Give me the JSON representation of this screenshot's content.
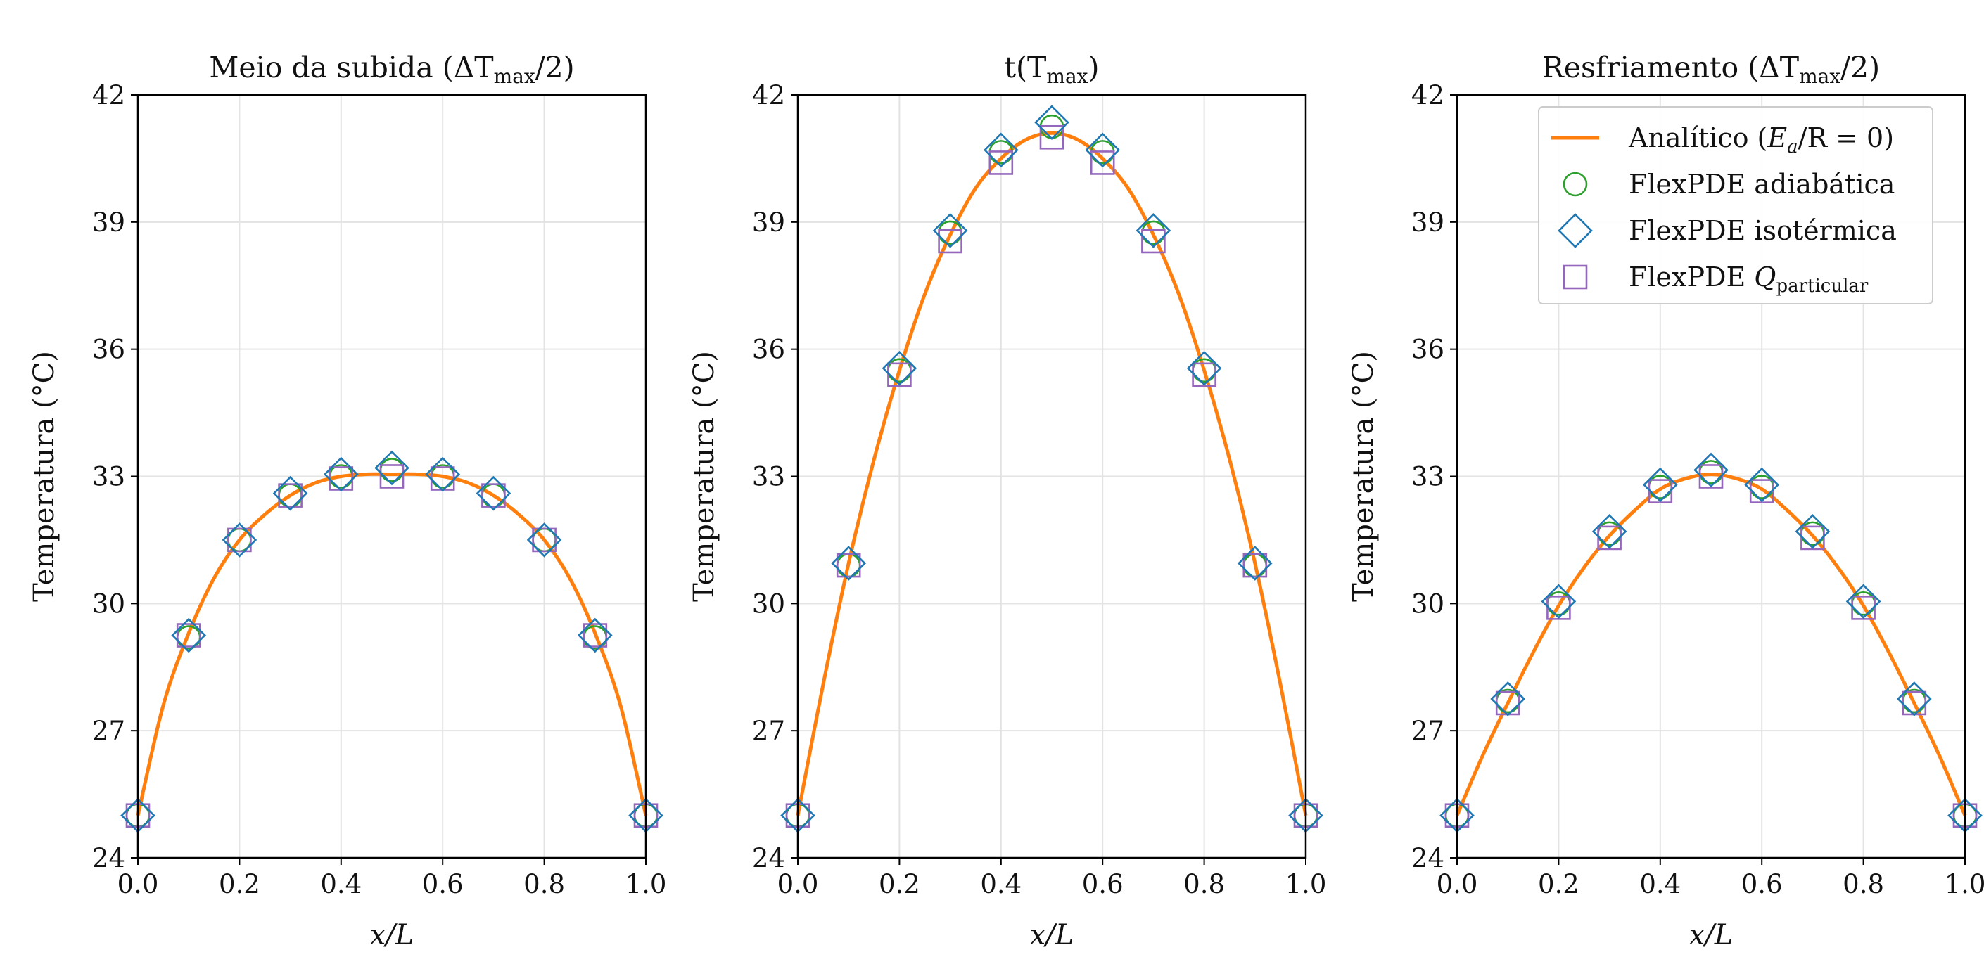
{
  "chart_data": [
    {
      "type": "line",
      "title": {
        "main": "Meio da subida (ΔT",
        "sub": "max",
        "tail": "/2)"
      },
      "xlabel": "x/L",
      "ylabel": "Temperatura (°C)",
      "xlim": [
        0.0,
        1.0
      ],
      "ylim": [
        24,
        42
      ],
      "xticks": [
        "0.0",
        "0.2",
        "0.4",
        "0.6",
        "0.8",
        "1.0"
      ],
      "yticks": [
        "24",
        "27",
        "30",
        "33",
        "36",
        "39",
        "42"
      ],
      "grid": true,
      "legend": null,
      "series": [
        {
          "name": "Analítico (Ea/R = 0)",
          "marker": "line",
          "color": "#ff7f0e",
          "x": [
            0.0,
            0.05,
            0.1,
            0.15,
            0.2,
            0.25,
            0.3,
            0.35,
            0.4,
            0.45,
            0.5,
            0.55,
            0.6,
            0.65,
            0.7,
            0.75,
            0.8,
            0.85,
            0.9,
            0.95,
            1.0
          ],
          "y": [
            25.0,
            27.6,
            29.3,
            30.6,
            31.5,
            32.1,
            32.55,
            32.85,
            33.0,
            33.05,
            33.05,
            33.05,
            33.0,
            32.85,
            32.55,
            32.1,
            31.5,
            30.6,
            29.3,
            27.6,
            25.0
          ]
        },
        {
          "name": "FlexPDE adiabática",
          "marker": "circle",
          "color": "#2ca02c",
          "x": [
            0.0,
            0.1,
            0.2,
            0.3,
            0.4,
            0.5,
            0.6,
            0.7,
            0.8,
            0.9,
            1.0
          ],
          "y": [
            25.0,
            29.2,
            31.5,
            32.55,
            33.0,
            33.15,
            33.0,
            32.55,
            31.5,
            29.2,
            25.0
          ]
        },
        {
          "name": "FlexPDE isotérmica",
          "marker": "diamond",
          "color": "#1f77b4",
          "x": [
            0.0,
            0.1,
            0.2,
            0.3,
            0.4,
            0.5,
            0.6,
            0.7,
            0.8,
            0.9,
            1.0
          ],
          "y": [
            25.0,
            29.25,
            31.5,
            32.6,
            33.05,
            33.2,
            33.05,
            32.6,
            31.5,
            29.25,
            25.0
          ]
        },
        {
          "name": "FlexPDE Qparticular",
          "marker": "square",
          "color": "#9467bd",
          "x": [
            0.0,
            0.1,
            0.2,
            0.3,
            0.4,
            0.5,
            0.6,
            0.7,
            0.8,
            0.9,
            1.0
          ],
          "y": [
            25.0,
            29.25,
            31.5,
            32.55,
            32.95,
            33.0,
            32.95,
            32.55,
            31.5,
            29.25,
            25.0
          ]
        }
      ]
    },
    {
      "type": "line",
      "title": {
        "main": "t(T",
        "sub": "max",
        "tail": ")"
      },
      "xlabel": "x/L",
      "ylabel": "Temperatura (°C)",
      "xlim": [
        0.0,
        1.0
      ],
      "ylim": [
        24,
        42
      ],
      "xticks": [
        "0.0",
        "0.2",
        "0.4",
        "0.6",
        "0.8",
        "1.0"
      ],
      "yticks": [
        "24",
        "27",
        "30",
        "33",
        "36",
        "39",
        "42"
      ],
      "grid": true,
      "legend": null,
      "series": [
        {
          "name": "Analítico (Ea/R = 0)",
          "marker": "line",
          "color": "#ff7f0e",
          "x": [
            0.0,
            0.05,
            0.1,
            0.15,
            0.2,
            0.25,
            0.3,
            0.35,
            0.4,
            0.45,
            0.5,
            0.55,
            0.6,
            0.65,
            0.7,
            0.75,
            0.8,
            0.85,
            0.9,
            0.95,
            1.0
          ],
          "y": [
            25.0,
            28.1,
            30.95,
            33.4,
            35.5,
            37.3,
            38.7,
            39.8,
            40.5,
            40.95,
            41.1,
            40.95,
            40.5,
            39.8,
            38.7,
            37.3,
            35.5,
            33.4,
            30.95,
            28.1,
            25.0
          ]
        },
        {
          "name": "FlexPDE adiabática",
          "marker": "circle",
          "color": "#2ca02c",
          "x": [
            0.0,
            0.1,
            0.2,
            0.3,
            0.4,
            0.5,
            0.6,
            0.7,
            0.8,
            0.9,
            1.0
          ],
          "y": [
            25.0,
            30.9,
            35.5,
            38.75,
            40.65,
            41.25,
            40.65,
            38.75,
            35.5,
            30.9,
            25.0
          ]
        },
        {
          "name": "FlexPDE isotérmica",
          "marker": "diamond",
          "color": "#1f77b4",
          "x": [
            0.0,
            0.1,
            0.2,
            0.3,
            0.4,
            0.5,
            0.6,
            0.7,
            0.8,
            0.9,
            1.0
          ],
          "y": [
            25.0,
            30.95,
            35.55,
            38.8,
            40.7,
            41.35,
            40.7,
            38.8,
            35.55,
            30.95,
            25.0
          ]
        },
        {
          "name": "FlexPDE Qparticular",
          "marker": "square",
          "color": "#9467bd",
          "x": [
            0.0,
            0.1,
            0.2,
            0.3,
            0.4,
            0.5,
            0.6,
            0.7,
            0.8,
            0.9,
            1.0
          ],
          "y": [
            25.0,
            30.9,
            35.4,
            38.55,
            40.4,
            41.0,
            40.4,
            38.55,
            35.4,
            30.9,
            25.0
          ]
        }
      ]
    },
    {
      "type": "line",
      "title": {
        "main": "Resfriamento (ΔT",
        "sub": "max",
        "tail": "/2)"
      },
      "xlabel": "x/L",
      "ylabel": "Temperatura (°C)",
      "xlim": [
        0.0,
        1.0
      ],
      "ylim": [
        24,
        42
      ],
      "xticks": [
        "0.0",
        "0.2",
        "0.4",
        "0.6",
        "0.8",
        "1.0"
      ],
      "yticks": [
        "24",
        "27",
        "30",
        "33",
        "36",
        "39",
        "42"
      ],
      "grid": true,
      "legend": "top-right",
      "series": [
        {
          "name": "Analítico (Ea/R = 0)",
          "marker": "line",
          "color": "#ff7f0e",
          "x": [
            0.0,
            0.05,
            0.1,
            0.15,
            0.2,
            0.25,
            0.3,
            0.35,
            0.4,
            0.45,
            0.5,
            0.55,
            0.6,
            0.65,
            0.7,
            0.75,
            0.8,
            0.85,
            0.9,
            0.95,
            1.0
          ],
          "y": [
            25.0,
            26.4,
            27.65,
            28.85,
            29.95,
            30.85,
            31.6,
            32.2,
            32.7,
            32.95,
            33.05,
            32.95,
            32.7,
            32.2,
            31.6,
            30.85,
            29.95,
            28.85,
            27.65,
            26.4,
            25.0
          ]
        },
        {
          "name": "FlexPDE adiabática",
          "marker": "circle",
          "color": "#2ca02c",
          "x": [
            0.0,
            0.1,
            0.2,
            0.3,
            0.4,
            0.5,
            0.6,
            0.7,
            0.8,
            0.9,
            1.0
          ],
          "y": [
            25.0,
            27.7,
            30.0,
            31.65,
            32.75,
            33.1,
            32.75,
            31.65,
            30.0,
            27.7,
            25.0
          ]
        },
        {
          "name": "FlexPDE isotérmica",
          "marker": "diamond",
          "color": "#1f77b4",
          "x": [
            0.0,
            0.1,
            0.2,
            0.3,
            0.4,
            0.5,
            0.6,
            0.7,
            0.8,
            0.9,
            1.0
          ],
          "y": [
            25.0,
            27.75,
            30.05,
            31.7,
            32.8,
            33.15,
            32.8,
            31.7,
            30.05,
            27.75,
            25.0
          ]
        },
        {
          "name": "FlexPDE Qparticular",
          "marker": "square",
          "color": "#9467bd",
          "x": [
            0.0,
            0.1,
            0.2,
            0.3,
            0.4,
            0.5,
            0.6,
            0.7,
            0.8,
            0.9,
            1.0
          ],
          "y": [
            25.0,
            27.65,
            29.9,
            31.55,
            32.65,
            33.0,
            32.65,
            31.55,
            29.9,
            27.65,
            25.0
          ]
        }
      ]
    }
  ],
  "legend": {
    "entries": [
      {
        "marker": "line",
        "color": "#ff7f0e",
        "text": "Analítico (",
        "math": "E",
        "sub": "a",
        "tail": "/R = 0)"
      },
      {
        "marker": "circle",
        "color": "#2ca02c",
        "text": "FlexPDE adiabática"
      },
      {
        "marker": "diamond",
        "color": "#1f77b4",
        "text": "FlexPDE isotérmica"
      },
      {
        "marker": "square",
        "color": "#9467bd",
        "text": "FlexPDE ",
        "math": "Q",
        "sub": "particular",
        "tail": ""
      }
    ]
  }
}
